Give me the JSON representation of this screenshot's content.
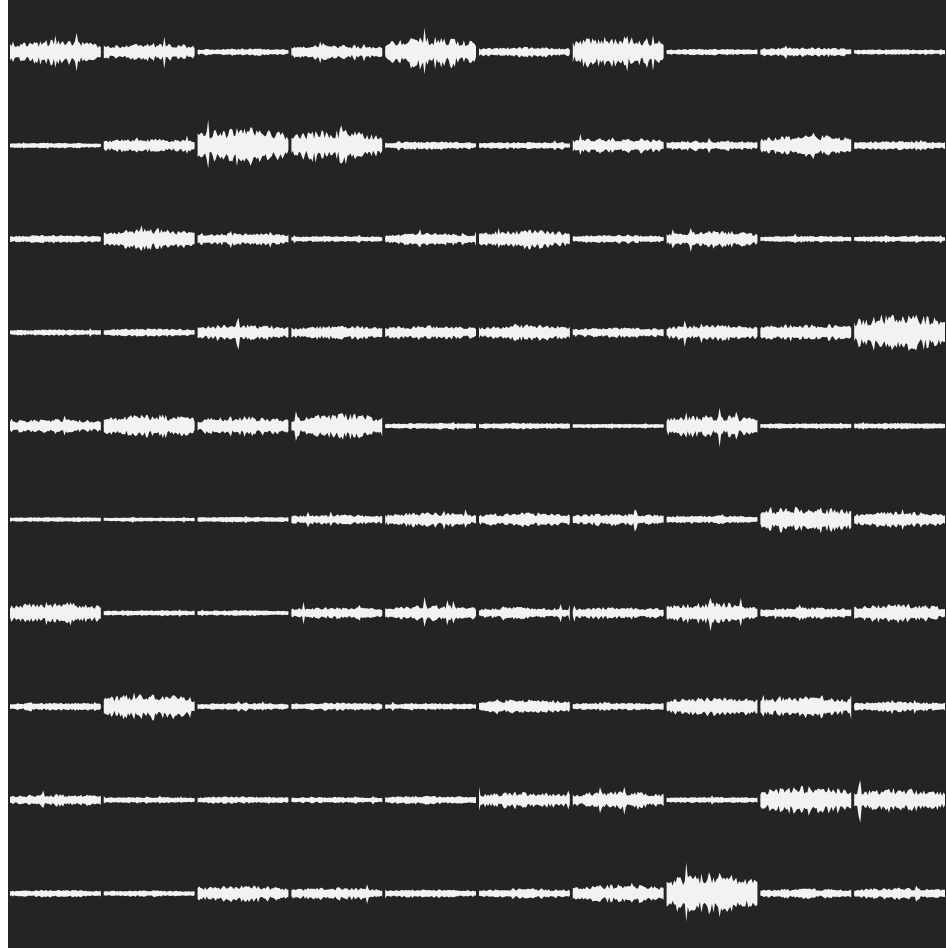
{
  "colors": {
    "background": "#242424",
    "waveform": "#f2f2f2",
    "page_margin": "#ffffff"
  },
  "grid": {
    "rows": 10,
    "clips_per_row": 10
  },
  "rows": [
    {
      "name": "row-1",
      "clips": [
        0.55,
        0.4,
        0.12,
        0.3,
        0.7,
        0.2,
        0.75,
        0.1,
        0.18,
        0.08
      ]
    },
    {
      "name": "row-2",
      "clips": [
        0.08,
        0.3,
        0.85,
        0.75,
        0.15,
        0.12,
        0.35,
        0.2,
        0.5,
        0.18
      ]
    },
    {
      "name": "row-3",
      "clips": [
        0.15,
        0.45,
        0.25,
        0.1,
        0.25,
        0.4,
        0.15,
        0.35,
        0.1,
        0.1
      ]
    },
    {
      "name": "row-4",
      "clips": [
        0.1,
        0.15,
        0.35,
        0.3,
        0.3,
        0.35,
        0.2,
        0.35,
        0.4,
        0.9
      ]
    },
    {
      "name": "row-5",
      "clips": [
        0.3,
        0.55,
        0.45,
        0.6,
        0.1,
        0.1,
        0.05,
        0.5,
        0.08,
        0.1
      ]
    },
    {
      "name": "row-6",
      "clips": [
        0.06,
        0.04,
        0.08,
        0.2,
        0.3,
        0.3,
        0.25,
        0.15,
        0.6,
        0.35
      ]
    },
    {
      "name": "row-7",
      "clips": [
        0.5,
        0.08,
        0.08,
        0.25,
        0.35,
        0.25,
        0.25,
        0.5,
        0.25,
        0.4
      ]
    },
    {
      "name": "row-8",
      "clips": [
        0.15,
        0.6,
        0.12,
        0.15,
        0.12,
        0.3,
        0.15,
        0.45,
        0.45,
        0.2
      ]
    },
    {
      "name": "row-9",
      "clips": [
        0.25,
        0.1,
        0.12,
        0.1,
        0.15,
        0.35,
        0.4,
        0.1,
        0.65,
        0.55
      ]
    },
    {
      "name": "row-10",
      "clips": [
        0.12,
        0.1,
        0.35,
        0.25,
        0.15,
        0.2,
        0.4,
        1.0,
        0.2,
        0.25
      ]
    }
  ]
}
